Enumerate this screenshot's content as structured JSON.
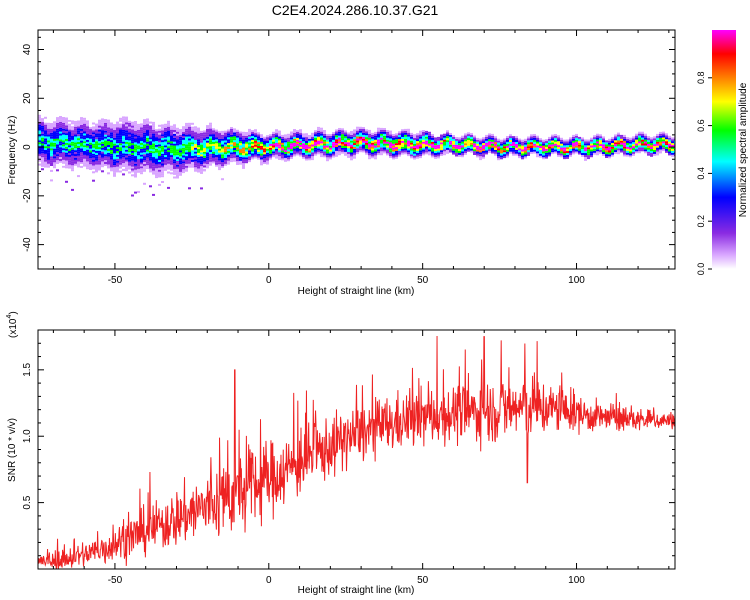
{
  "figure": {
    "title": "C2E4.2024.286.10.37.G21"
  },
  "chart_data": [
    {
      "type": "heatmap",
      "xlabel": "Height of straight line (km)",
      "ylabel": "Frequency (Hz)",
      "xlim": [
        -75,
        132
      ],
      "ylim": [
        -50,
        48
      ],
      "xticks": [
        -50,
        0,
        50,
        100
      ],
      "yticks": [
        -40,
        -20,
        0,
        20,
        40
      ],
      "grid": false,
      "colorbar": {
        "label": "Normalized spectral amplitude",
        "range": [
          0,
          1
        ],
        "ticks": [
          0.0,
          0.2,
          0.4,
          0.6,
          0.8
        ],
        "tick_labels": [
          "0.0",
          "0.2",
          "0.4",
          "0.6",
          "0.8"
        ],
        "colormap": [
          "#ffffff",
          "#8a2be2",
          "#0000ff",
          "#00ffff",
          "#00ff00",
          "#ffff00",
          "#ff8000",
          "#ff0000",
          "#ff00ff"
        ]
      },
      "ridge": {
        "description": "dominant frequency track near 0 Hz",
        "height_km": [
          -75,
          -60,
          -45,
          -30,
          -15,
          0,
          15,
          30,
          45,
          60,
          75,
          90,
          105,
          120,
          132
        ],
        "frequency_hz": [
          2,
          1,
          0,
          -1,
          0,
          0,
          1,
          2,
          1,
          1,
          0,
          0,
          0,
          1,
          1
        ],
        "spread_hz": [
          8,
          8,
          9,
          8,
          6,
          4,
          4,
          4,
          4,
          3,
          3,
          3,
          3,
          3,
          3
        ],
        "peak_amplitude": [
          0.5,
          0.5,
          0.5,
          0.55,
          0.7,
          0.9,
          0.9,
          0.9,
          0.95,
          0.95,
          0.95,
          0.95,
          0.95,
          0.95,
          0.95
        ]
      }
    },
    {
      "type": "line",
      "xlabel": "Height of straight line (km)",
      "ylabel": "SNR (10 * v/v)",
      "y_multiplier": "(x10",
      "y_multiplier_exp": "4",
      "xlim": [
        -75,
        132
      ],
      "ylim": [
        0,
        1.8
      ],
      "xticks": [
        -50,
        0,
        50,
        100
      ],
      "yticks": [
        0.5,
        1.0,
        1.5
      ],
      "ytick_labels": [
        "0.5",
        "1.0",
        "1.5"
      ],
      "grid": false,
      "series": [
        {
          "color": "#ee2222",
          "x": [
            -75,
            -65,
            -55,
            -45,
            -35,
            -25,
            -15,
            -5,
            5,
            15,
            25,
            35,
            45,
            55,
            65,
            75,
            85,
            95,
            105,
            115,
            125,
            132
          ],
          "y": [
            0.05,
            0.08,
            0.14,
            0.24,
            0.33,
            0.43,
            0.52,
            0.62,
            0.74,
            0.86,
            0.98,
            1.06,
            1.12,
            1.16,
            1.18,
            1.2,
            1.22,
            1.2,
            1.15,
            1.13,
            1.12,
            1.12
          ],
          "variability": [
            0.05,
            0.07,
            0.1,
            0.13,
            0.16,
            0.2,
            0.24,
            0.25,
            0.22,
            0.2,
            0.18,
            0.18,
            0.18,
            0.18,
            0.18,
            0.2,
            0.2,
            0.14,
            0.1,
            0.08,
            0.06,
            0.05
          ],
          "spikes": [
            {
              "x": -11,
              "y": 1.5
            },
            {
              "x": 70,
              "y": 1.75
            },
            {
              "x": 84,
              "y": 1.75
            },
            {
              "x": 84,
              "y": 0.65
            }
          ]
        }
      ]
    }
  ]
}
